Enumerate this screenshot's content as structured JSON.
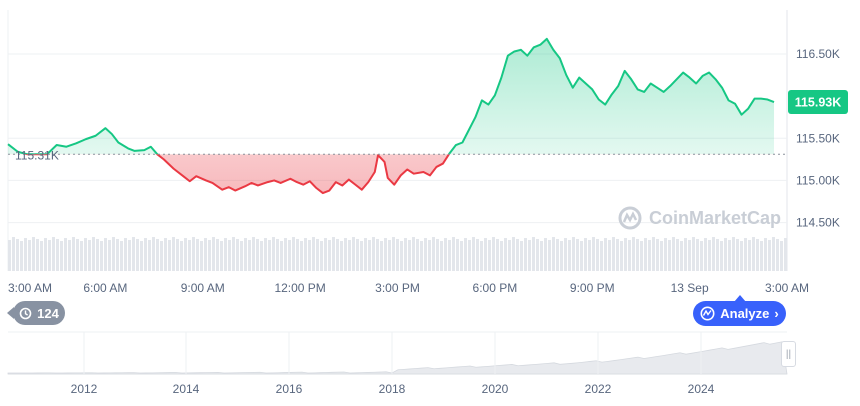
{
  "chart_data": {
    "type": "area",
    "open_price": 115.31,
    "current_price": 115.93,
    "open_label": "115.31K",
    "current_label": "115.93K",
    "y_ticks": [
      {
        "value": 116.5,
        "label": "116.50K"
      },
      {
        "value": 115.5,
        "label": "115.50K"
      },
      {
        "value": 115.0,
        "label": "115.00K"
      },
      {
        "value": 114.5,
        "label": "114.50K"
      }
    ],
    "x_ticks": [
      {
        "t": 0,
        "label": "3:00 AM"
      },
      {
        "t": 3,
        "label": "6:00 AM"
      },
      {
        "t": 6,
        "label": "9:00 AM"
      },
      {
        "t": 9,
        "label": "12:00 PM"
      },
      {
        "t": 12,
        "label": "3:00 PM"
      },
      {
        "t": 15,
        "label": "6:00 PM"
      },
      {
        "t": 18,
        "label": "9:00 PM"
      },
      {
        "t": 21,
        "label": "13 Sep"
      },
      {
        "t": 24,
        "label": "3:00 AM"
      }
    ],
    "x_range": [
      0,
      24
    ],
    "ylim": [
      114.1,
      117.0
    ],
    "colors": {
      "up": "#16c784",
      "down": "#ea3943",
      "volume": "#e3e6eb",
      "grid": "#eef0f3"
    },
    "price_series": [
      [
        0.0,
        115.43
      ],
      [
        0.3,
        115.34
      ],
      [
        0.6,
        115.31
      ],
      [
        0.9,
        115.31
      ],
      [
        1.2,
        115.31
      ],
      [
        1.5,
        115.42
      ],
      [
        1.8,
        115.4
      ],
      [
        2.1,
        115.44
      ],
      [
        2.4,
        115.49
      ],
      [
        2.7,
        115.53
      ],
      [
        3.0,
        115.62
      ],
      [
        3.2,
        115.55
      ],
      [
        3.4,
        115.45
      ],
      [
        3.7,
        115.38
      ],
      [
        3.9,
        115.35
      ],
      [
        4.2,
        115.36
      ],
      [
        4.4,
        115.4
      ],
      [
        4.6,
        115.31
      ],
      [
        4.8,
        115.25
      ],
      [
        5.1,
        115.14
      ],
      [
        5.4,
        115.05
      ],
      [
        5.6,
        114.99
      ],
      [
        5.8,
        115.05
      ],
      [
        6.1,
        115.0
      ],
      [
        6.3,
        114.97
      ],
      [
        6.6,
        114.89
      ],
      [
        6.8,
        114.92
      ],
      [
        7.0,
        114.88
      ],
      [
        7.3,
        114.93
      ],
      [
        7.5,
        114.97
      ],
      [
        7.7,
        114.94
      ],
      [
        8.0,
        114.98
      ],
      [
        8.2,
        115.0
      ],
      [
        8.4,
        114.97
      ],
      [
        8.7,
        115.02
      ],
      [
        8.9,
        114.98
      ],
      [
        9.1,
        114.95
      ],
      [
        9.3,
        114.99
      ],
      [
        9.5,
        114.91
      ],
      [
        9.7,
        114.85
      ],
      [
        9.9,
        114.88
      ],
      [
        10.1,
        114.98
      ],
      [
        10.3,
        114.94
      ],
      [
        10.5,
        115.01
      ],
      [
        10.7,
        114.95
      ],
      [
        10.9,
        114.89
      ],
      [
        11.1,
        114.98
      ],
      [
        11.3,
        115.1
      ],
      [
        11.4,
        115.3
      ],
      [
        11.6,
        115.22
      ],
      [
        11.7,
        115.03
      ],
      [
        11.9,
        114.95
      ],
      [
        12.1,
        115.06
      ],
      [
        12.3,
        115.13
      ],
      [
        12.5,
        115.08
      ],
      [
        12.8,
        115.1
      ],
      [
        13.0,
        115.06
      ],
      [
        13.2,
        115.16
      ],
      [
        13.4,
        115.2
      ],
      [
        13.6,
        115.32
      ],
      [
        13.8,
        115.42
      ],
      [
        14.0,
        115.45
      ],
      [
        14.2,
        115.6
      ],
      [
        14.4,
        115.75
      ],
      [
        14.6,
        115.95
      ],
      [
        14.8,
        115.9
      ],
      [
        15.0,
        116.01
      ],
      [
        15.2,
        116.22
      ],
      [
        15.4,
        116.48
      ],
      [
        15.6,
        116.53
      ],
      [
        15.8,
        116.55
      ],
      [
        16.0,
        116.48
      ],
      [
        16.2,
        116.58
      ],
      [
        16.4,
        116.61
      ],
      [
        16.6,
        116.68
      ],
      [
        16.8,
        116.55
      ],
      [
        17.0,
        116.45
      ],
      [
        17.2,
        116.25
      ],
      [
        17.4,
        116.1
      ],
      [
        17.6,
        116.22
      ],
      [
        17.8,
        116.15
      ],
      [
        18.0,
        116.08
      ],
      [
        18.2,
        115.96
      ],
      [
        18.4,
        115.9
      ],
      [
        18.6,
        116.02
      ],
      [
        18.8,
        116.12
      ],
      [
        19.0,
        116.3
      ],
      [
        19.2,
        116.2
      ],
      [
        19.4,
        116.08
      ],
      [
        19.6,
        116.05
      ],
      [
        19.8,
        116.15
      ],
      [
        20.0,
        116.1
      ],
      [
        20.2,
        116.05
      ],
      [
        20.4,
        116.12
      ],
      [
        20.6,
        116.2
      ],
      [
        20.8,
        116.28
      ],
      [
        21.0,
        116.22
      ],
      [
        21.2,
        116.15
      ],
      [
        21.4,
        116.24
      ],
      [
        21.6,
        116.28
      ],
      [
        21.8,
        116.2
      ],
      [
        22.0,
        116.1
      ],
      [
        22.2,
        115.95
      ],
      [
        22.4,
        115.91
      ],
      [
        22.6,
        115.78
      ],
      [
        22.8,
        115.85
      ],
      [
        23.0,
        115.97
      ],
      [
        23.2,
        115.97
      ],
      [
        23.4,
        115.96
      ],
      [
        23.6,
        115.93
      ]
    ]
  },
  "overview": {
    "year_ticks": [
      "2012",
      "2014",
      "2016",
      "2018",
      "2020",
      "2022",
      "2024"
    ]
  },
  "controls": {
    "history_count": "124",
    "analyze_label": "Analyze",
    "watermark": "CoinMarketCap"
  }
}
